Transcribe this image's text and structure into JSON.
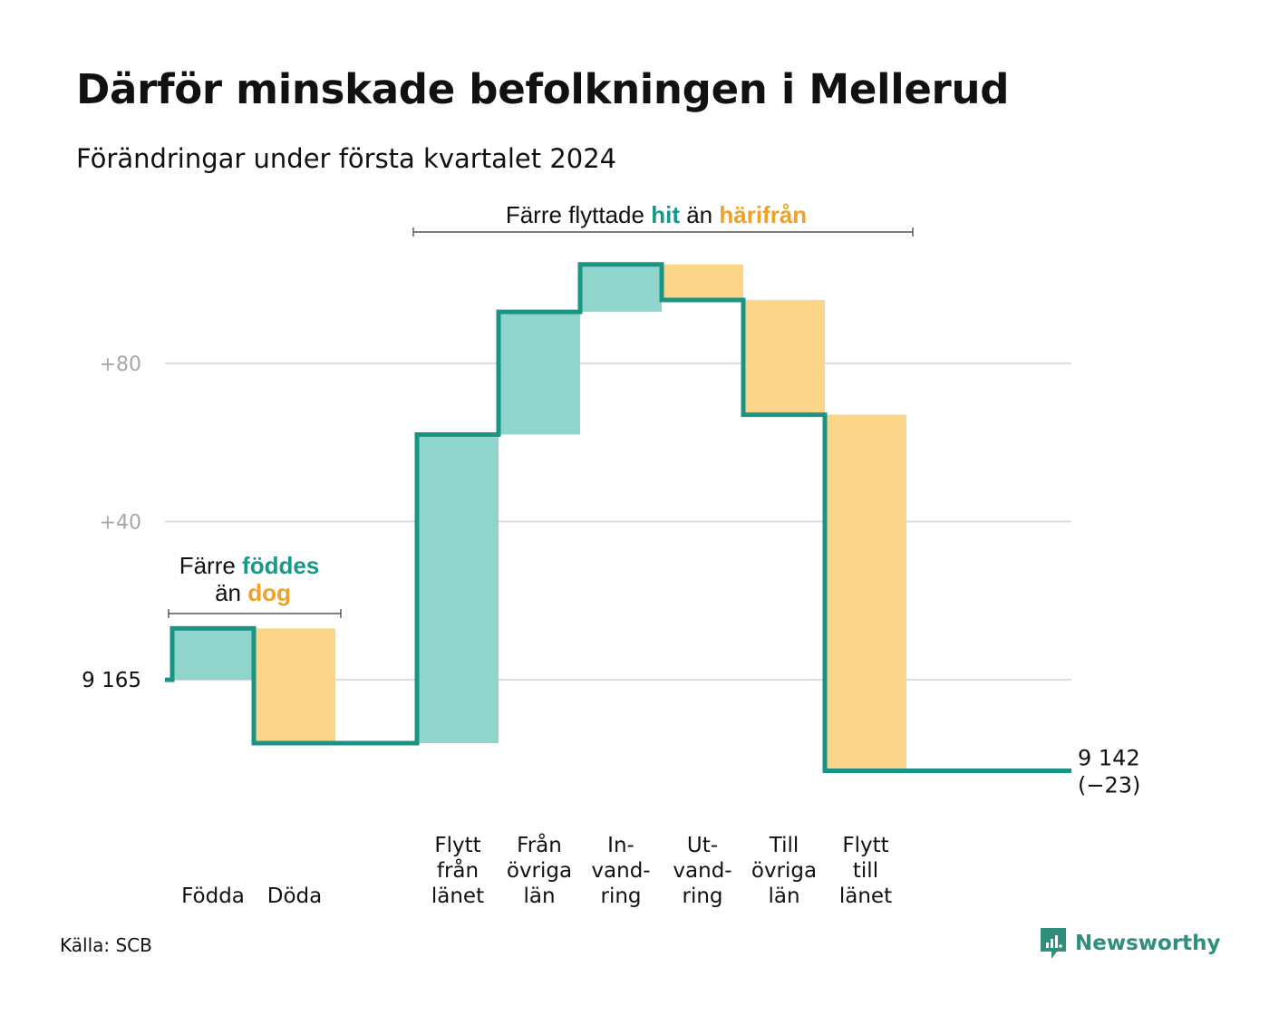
{
  "title": "Därför minskade befolkningen i Mellerud",
  "subtitle": "Förändringar under första kvartalet 2024",
  "source": "Källa: SCB",
  "brand": "Newsworthy",
  "colors": {
    "increase_fill": "#8fd5cb",
    "decrease_fill": "#fad58a",
    "step_line": "#1a9485",
    "accent_teal": "#16988a",
    "accent_orange": "#f0a12a",
    "gridline": "#dddddd"
  },
  "annotations": {
    "births": {
      "line1_a": "Färre ",
      "line1_b": "föddes",
      "line2_a": "än ",
      "line2_b": "dog"
    },
    "moves": {
      "part_a": "Färre flyttade ",
      "part_b": "hit",
      "part_c": " än ",
      "part_d": "härifrån"
    }
  },
  "chart_data": {
    "type": "waterfall",
    "title": "Därför minskade befolkningen i Mellerud",
    "subtitle": "Förändringar under första kvartalet 2024",
    "base_value": 9165,
    "base_label": "9 165",
    "end_value": 9142,
    "end_label_line1": "9 142",
    "end_label_line2": "(−23)",
    "y_ticks": [
      {
        "offset": 0,
        "label": "9 165"
      },
      {
        "offset": 40,
        "label": "+40"
      },
      {
        "offset": 80,
        "label": "+80"
      }
    ],
    "ylim": [
      -27,
      107
    ],
    "grid": true,
    "steps": [
      {
        "name": "Födda",
        "label_lines": [
          "Födda"
        ],
        "change": 13
      },
      {
        "name": "Döda",
        "label_lines": [
          "Döda"
        ],
        "change": -29
      },
      {
        "name": "",
        "label_lines": [],
        "change": 0
      },
      {
        "name": "Flytt från länet",
        "label_lines": [
          "Flytt",
          "från",
          "länet"
        ],
        "change": 78
      },
      {
        "name": "Från övriga län",
        "label_lines": [
          "Från",
          "övriga",
          "län"
        ],
        "change": 31
      },
      {
        "name": "Invandring",
        "label_lines": [
          "In-",
          "vand-",
          "ring"
        ],
        "change": 12
      },
      {
        "name": "Utvandring",
        "label_lines": [
          "Ut-",
          "vand-",
          "ring"
        ],
        "change": -9
      },
      {
        "name": "Till övriga län",
        "label_lines": [
          "Till",
          "övriga",
          "län"
        ],
        "change": -29
      },
      {
        "name": "Flytt till länet",
        "label_lines": [
          "Flytt",
          "till",
          "länet"
        ],
        "change": -90
      },
      {
        "name": "",
        "label_lines": [],
        "change": 0
      }
    ]
  }
}
